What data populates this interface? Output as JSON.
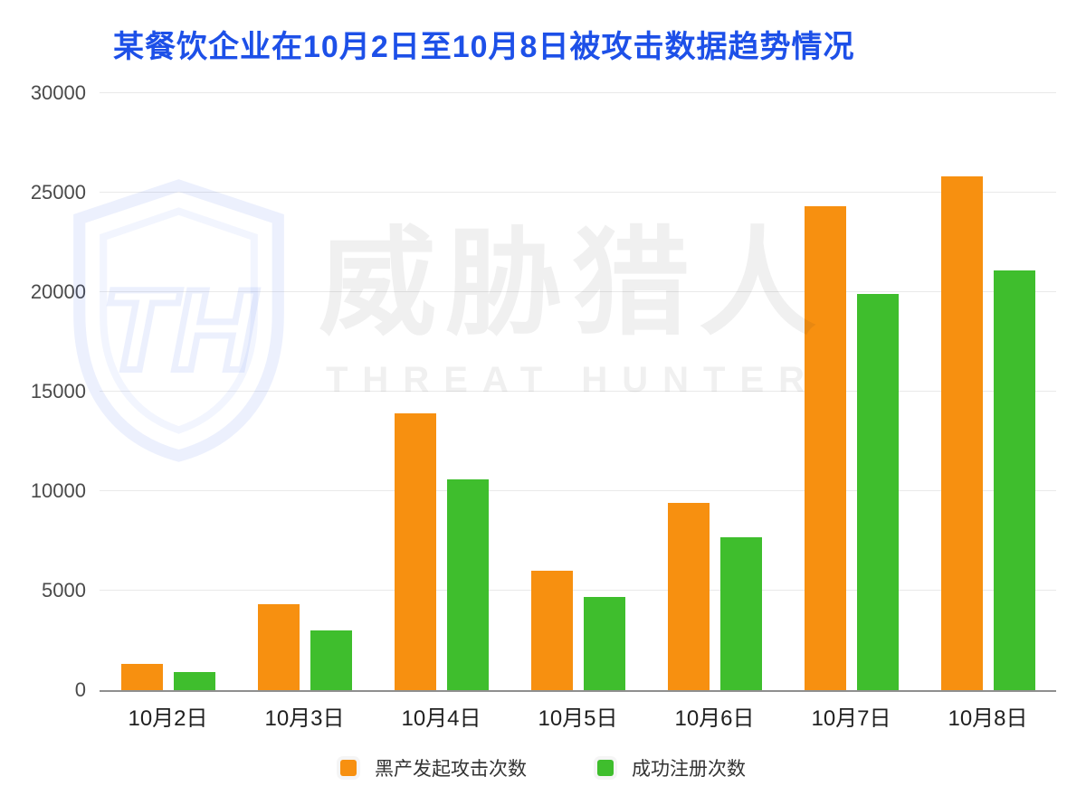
{
  "title": "某餐饮企业在10月2日至10月8日被攻击数据趋势情况",
  "colors": {
    "title": "#1d50e8",
    "orange": "#f79010",
    "green": "#3fbe2d",
    "gridline": "#e9e9e9",
    "baseline": "#8f8f8f",
    "y_label": "#4a4a4a",
    "x_label": "#1f1f1f",
    "legend_label": "#333333"
  },
  "watermark": {
    "logo": "threat-hunter-shield-th-monogram",
    "cn": "威胁猎人",
    "en": "THREAT HUNTER"
  },
  "chart_data": {
    "type": "bar",
    "title": "某餐饮企业在10月2日至10月8日被攻击数据趋势情况",
    "categories": [
      "10月2日",
      "10月3日",
      "10月4日",
      "10月5日",
      "10月6日",
      "10月7日",
      "10月8日"
    ],
    "series": [
      {
        "key": "attack-count",
        "name": "黑产发起攻击次数",
        "color_key": "orange",
        "values": [
          1300,
          4300,
          13900,
          6000,
          9400,
          24300,
          25800
        ]
      },
      {
        "key": "register-count",
        "name": "成功注册次数",
        "color_key": "green",
        "values": [
          900,
          3000,
          10600,
          4700,
          7700,
          19900,
          21100
        ]
      }
    ],
    "xlabel": "",
    "ylabel": "",
    "ylim": [
      0,
      30000
    ],
    "yticks": [
      0,
      5000,
      10000,
      15000,
      20000,
      25000,
      30000
    ],
    "grid": "horizontal",
    "legend_position": "bottom"
  }
}
